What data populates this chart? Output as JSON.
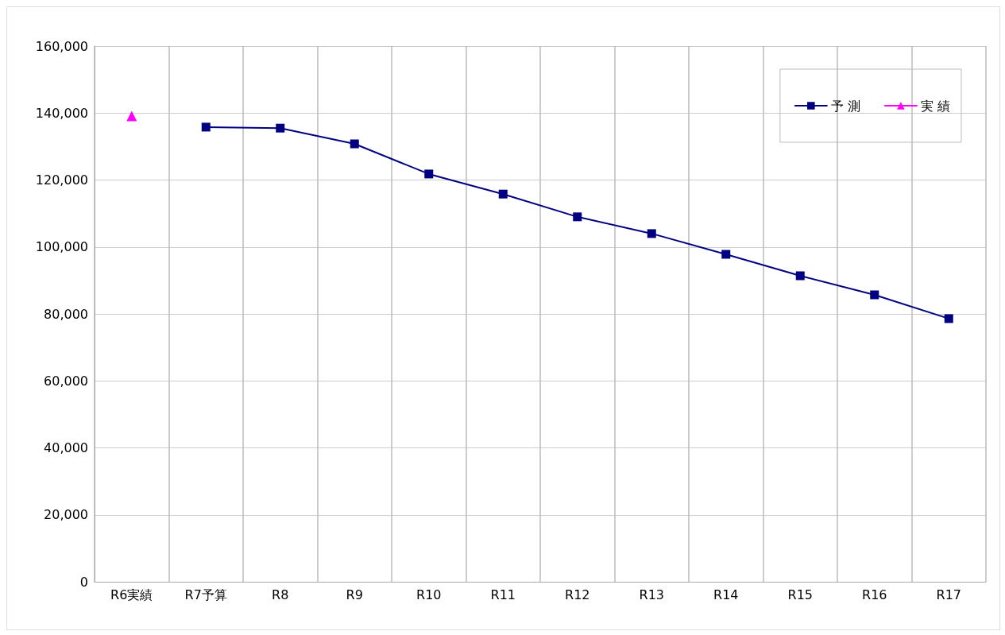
{
  "chart_data": {
    "type": "line",
    "categories": [
      "R6実績",
      "R7予算",
      "R8",
      "R9",
      "R10",
      "R11",
      "R12",
      "R13",
      "R14",
      "R15",
      "R16",
      "R17"
    ],
    "series": [
      {
        "name": "予 測",
        "color": "#000080",
        "marker": "square",
        "values": [
          null,
          135800,
          135500,
          130800,
          121800,
          115800,
          109000,
          104000,
          97800,
          91400,
          85700,
          78600
        ]
      },
      {
        "name": "実 績",
        "color": "#ff00ff",
        "marker": "triangle",
        "values": [
          139100,
          null,
          null,
          null,
          null,
          null,
          null,
          null,
          null,
          null,
          null,
          null
        ]
      }
    ],
    "ylim": [
      0,
      160000
    ],
    "yticks": [
      {
        "value": 0,
        "label": "0"
      },
      {
        "value": 20000,
        "label": "20,000"
      },
      {
        "value": 40000,
        "label": "40,000"
      },
      {
        "value": 60000,
        "label": "60,000"
      },
      {
        "value": 80000,
        "label": "80,000"
      },
      {
        "value": 100000,
        "label": "100,000"
      },
      {
        "value": 120000,
        "label": "120,000"
      },
      {
        "value": 140000,
        "label": "140,000"
      },
      {
        "value": 160000,
        "label": "160,000"
      }
    ],
    "grid": true,
    "legend": "top right"
  }
}
